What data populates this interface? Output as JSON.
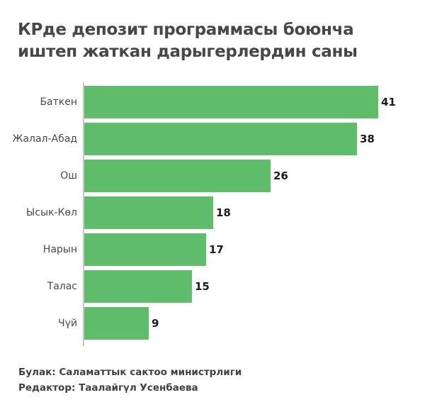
{
  "title": {
    "line1": "КРде депозит программасы боюнча",
    "line2": "иштеп жаткан дарыгерлердин саны"
  },
  "footer": {
    "source": "Булак: Саламаттык сактоо министрлиги",
    "editor": "Редактор: Таалайгүл Усенбаева"
  },
  "colors": {
    "background": "#ffffff",
    "bar": "#5fbd6b",
    "title": "#474747",
    "label": "#4a4a4a",
    "value": "#1b1b1b",
    "axis": "#c6c6c6",
    "footer": "#3f3f3f"
  },
  "chart_data": {
    "type": "bar",
    "orientation": "horizontal",
    "title": "КРде депозит программасы боюнча иштеп жаткан дарыгерлердин саны",
    "categories": [
      "Баткен",
      "Жалал-Абад",
      "Ош",
      "Ысык-Көл",
      "Нарын",
      "Талас",
      "Чүй"
    ],
    "values": [
      41,
      38,
      26,
      18,
      17,
      15,
      9
    ],
    "xlabel": "",
    "ylabel": "",
    "xlim": [
      0,
      41
    ],
    "grid": false,
    "legend": false,
    "value_labels": true,
    "source": "Булак: Саламаттык сактоо министрлиги",
    "editor": "Редактор: Таалайгүл Усенбаева"
  }
}
